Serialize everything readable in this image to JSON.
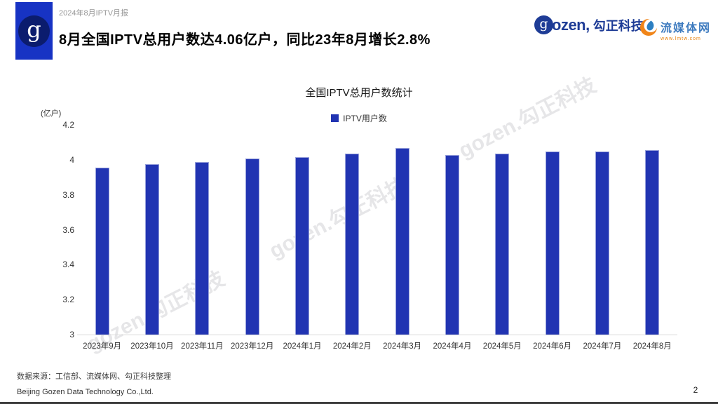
{
  "header": {
    "report_label": "2024年8月IPTV月报",
    "title": "8月全国IPTV总用户数达4.06亿户，同比23年8月增长2.8%"
  },
  "logos": {
    "gozen": {
      "monogram": "g",
      "latin": "ozen,",
      "cn": "勾正科技"
    },
    "lmtw": {
      "name": "流媒体网",
      "url": "www.lmtw.com"
    }
  },
  "chart_data": {
    "type": "bar",
    "title": "全国IPTV总用户数统计",
    "ylabel": "(亿户)",
    "xlabel": "",
    "legend": [
      {
        "label": "IPTV用户数",
        "color": "#2134b2"
      }
    ],
    "legend_position": "top-center",
    "categories": [
      "2023年9月",
      "2023年10月",
      "2023年11月",
      "2023年12月",
      "2024年1月",
      "2024年2月",
      "2024年3月",
      "2024年4月",
      "2024年5月",
      "2024年6月",
      "2024年7月",
      "2024年8月"
    ],
    "values": [
      3.96,
      3.98,
      3.99,
      4.01,
      4.02,
      4.04,
      4.07,
      4.03,
      4.04,
      4.05,
      4.05,
      4.06
    ],
    "ylim": [
      3,
      4.2
    ],
    "yticks": [
      "4.2",
      "4",
      "3.8",
      "3.6",
      "3.4",
      "3.2",
      "3"
    ],
    "grid": false,
    "bar_color": "#2134b2"
  },
  "watermark": {
    "text": "gozen.勾正科技"
  },
  "footer": {
    "source": "数据来源：工信部、流媒体网、勾正科技整理",
    "company": "Beijing Gozen Data Technology Co.,Ltd.",
    "page": "2"
  }
}
